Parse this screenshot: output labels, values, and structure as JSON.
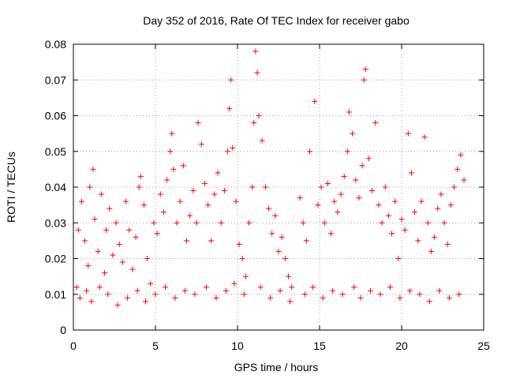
{
  "chart_data": {
    "type": "scatter",
    "title": "Day 352 of 2016, Rate Of TEC Index for receiver gabo",
    "xlabel": "GPS time / hours",
    "ylabel": "ROTI / TECUs",
    "xlim": [
      0,
      25
    ],
    "ylim": [
      0,
      0.08
    ],
    "x_ticks": [
      0,
      5,
      10,
      15,
      20,
      25
    ],
    "y_ticks": [
      0,
      0.01,
      0.02,
      0.03,
      0.04,
      0.05,
      0.06,
      0.07,
      0.08
    ],
    "x_tick_labels": [
      "0",
      "5",
      "10",
      "15",
      "20",
      "25"
    ],
    "y_tick_labels": [
      "0",
      "0.01",
      "0.02",
      "0.03",
      "0.04",
      "0.05",
      "0.06",
      "0.07",
      "0.08"
    ],
    "grid": true,
    "marker": "+",
    "color": "#ff0000",
    "series": [
      {
        "points": [
          [
            0.2,
            0.012
          ],
          [
            0.3,
            0.028
          ],
          [
            0.5,
            0.036
          ],
          [
            0.7,
            0.025
          ],
          [
            0.9,
            0.018
          ],
          [
            1.0,
            0.04
          ],
          [
            1.2,
            0.045
          ],
          [
            1.3,
            0.031
          ],
          [
            1.5,
            0.022
          ],
          [
            1.7,
            0.038
          ],
          [
            1.9,
            0.016
          ],
          [
            2.0,
            0.028
          ],
          [
            2.2,
            0.034
          ],
          [
            2.4,
            0.021
          ],
          [
            2.6,
            0.03
          ],
          [
            2.8,
            0.024
          ],
          [
            3.0,
            0.019
          ],
          [
            3.2,
            0.036
          ],
          [
            3.4,
            0.028
          ],
          [
            3.6,
            0.017
          ],
          [
            3.8,
            0.026
          ],
          [
            4.0,
            0.04
          ],
          [
            4.1,
            0.043
          ],
          [
            4.3,
            0.035
          ],
          [
            4.5,
            0.02
          ],
          [
            4.7,
            0.013
          ],
          [
            4.9,
            0.03
          ],
          [
            5.1,
            0.027
          ],
          [
            5.3,
            0.038
          ],
          [
            5.5,
            0.033
          ],
          [
            5.7,
            0.042
          ],
          [
            5.9,
            0.05
          ],
          [
            6.0,
            0.055
          ],
          [
            6.1,
            0.045
          ],
          [
            6.3,
            0.03
          ],
          [
            6.5,
            0.036
          ],
          [
            6.7,
            0.046
          ],
          [
            6.9,
            0.025
          ],
          [
            7.1,
            0.032
          ],
          [
            7.3,
            0.039
          ],
          [
            7.5,
            0.03
          ],
          [
            7.6,
            0.058
          ],
          [
            7.8,
            0.052
          ],
          [
            8.0,
            0.041
          ],
          [
            8.2,
            0.035
          ],
          [
            8.4,
            0.025
          ],
          [
            8.6,
            0.038
          ],
          [
            8.8,
            0.044
          ],
          [
            9.0,
            0.03
          ],
          [
            9.2,
            0.039
          ],
          [
            9.4,
            0.05
          ],
          [
            9.5,
            0.062
          ],
          [
            9.6,
            0.07
          ],
          [
            9.7,
            0.051
          ],
          [
            9.9,
            0.036
          ],
          [
            10.1,
            0.024
          ],
          [
            10.3,
            0.02
          ],
          [
            10.5,
            0.015
          ],
          [
            10.7,
            0.03
          ],
          [
            10.9,
            0.04
          ],
          [
            11.0,
            0.058
          ],
          [
            11.1,
            0.078
          ],
          [
            11.2,
            0.072
          ],
          [
            11.3,
            0.06
          ],
          [
            11.5,
            0.053
          ],
          [
            11.7,
            0.04
          ],
          [
            11.9,
            0.034
          ],
          [
            12.1,
            0.027
          ],
          [
            12.3,
            0.032
          ],
          [
            12.5,
            0.022
          ],
          [
            12.7,
            0.026
          ],
          [
            12.9,
            0.02
          ],
          [
            13.1,
            0.015
          ],
          [
            13.3,
            0.012
          ],
          [
            13.8,
            0.037
          ],
          [
            14.0,
            0.03
          ],
          [
            14.2,
            0.025
          ],
          [
            14.4,
            0.05
          ],
          [
            14.7,
            0.064
          ],
          [
            14.9,
            0.035
          ],
          [
            15.1,
            0.04
          ],
          [
            15.3,
            0.03
          ],
          [
            15.5,
            0.041
          ],
          [
            15.7,
            0.027
          ],
          [
            15.9,
            0.036
          ],
          [
            16.1,
            0.033
          ],
          [
            16.3,
            0.038
          ],
          [
            16.5,
            0.043
          ],
          [
            16.7,
            0.05
          ],
          [
            16.8,
            0.061
          ],
          [
            17.0,
            0.055
          ],
          [
            17.2,
            0.042
          ],
          [
            17.4,
            0.037
          ],
          [
            17.6,
            0.046
          ],
          [
            17.7,
            0.07
          ],
          [
            17.8,
            0.073
          ],
          [
            18.0,
            0.048
          ],
          [
            18.2,
            0.039
          ],
          [
            18.4,
            0.058
          ],
          [
            18.6,
            0.035
          ],
          [
            18.8,
            0.03
          ],
          [
            19.0,
            0.04
          ],
          [
            19.2,
            0.032
          ],
          [
            19.4,
            0.027
          ],
          [
            19.6,
            0.036
          ],
          [
            19.8,
            0.02
          ],
          [
            20.0,
            0.031
          ],
          [
            20.2,
            0.028
          ],
          [
            20.4,
            0.055
          ],
          [
            20.6,
            0.044
          ],
          [
            20.8,
            0.033
          ],
          [
            21.0,
            0.025
          ],
          [
            21.2,
            0.036
          ],
          [
            21.4,
            0.054
          ],
          [
            21.6,
            0.03
          ],
          [
            21.8,
            0.022
          ],
          [
            22.0,
            0.026
          ],
          [
            22.2,
            0.034
          ],
          [
            22.4,
            0.038
          ],
          [
            22.6,
            0.03
          ],
          [
            22.8,
            0.024
          ],
          [
            23.0,
            0.035
          ],
          [
            23.2,
            0.04
          ],
          [
            23.4,
            0.045
          ],
          [
            23.6,
            0.049
          ],
          [
            23.8,
            0.042
          ],
          [
            0.4,
            0.009
          ],
          [
            0.8,
            0.011
          ],
          [
            1.1,
            0.008
          ],
          [
            1.6,
            0.012
          ],
          [
            2.1,
            0.01
          ],
          [
            2.7,
            0.007
          ],
          [
            3.3,
            0.009
          ],
          [
            3.9,
            0.011
          ],
          [
            4.4,
            0.008
          ],
          [
            5.0,
            0.01
          ],
          [
            5.6,
            0.012
          ],
          [
            6.2,
            0.009
          ],
          [
            6.8,
            0.011
          ],
          [
            7.4,
            0.01
          ],
          [
            8.1,
            0.012
          ],
          [
            8.7,
            0.009
          ],
          [
            9.3,
            0.011
          ],
          [
            9.8,
            0.013
          ],
          [
            10.4,
            0.01
          ],
          [
            11.4,
            0.012
          ],
          [
            12.0,
            0.009
          ],
          [
            12.6,
            0.011
          ],
          [
            13.2,
            0.008
          ],
          [
            14.1,
            0.01
          ],
          [
            14.6,
            0.012
          ],
          [
            15.2,
            0.009
          ],
          [
            15.8,
            0.011
          ],
          [
            16.4,
            0.01
          ],
          [
            17.1,
            0.012
          ],
          [
            17.5,
            0.009
          ],
          [
            18.1,
            0.011
          ],
          [
            18.7,
            0.01
          ],
          [
            19.3,
            0.012
          ],
          [
            19.9,
            0.009
          ],
          [
            20.5,
            0.011
          ],
          [
            21.1,
            0.01
          ],
          [
            21.7,
            0.008
          ],
          [
            22.3,
            0.011
          ],
          [
            22.9,
            0.009
          ],
          [
            23.5,
            0.01
          ]
        ]
      }
    ]
  }
}
